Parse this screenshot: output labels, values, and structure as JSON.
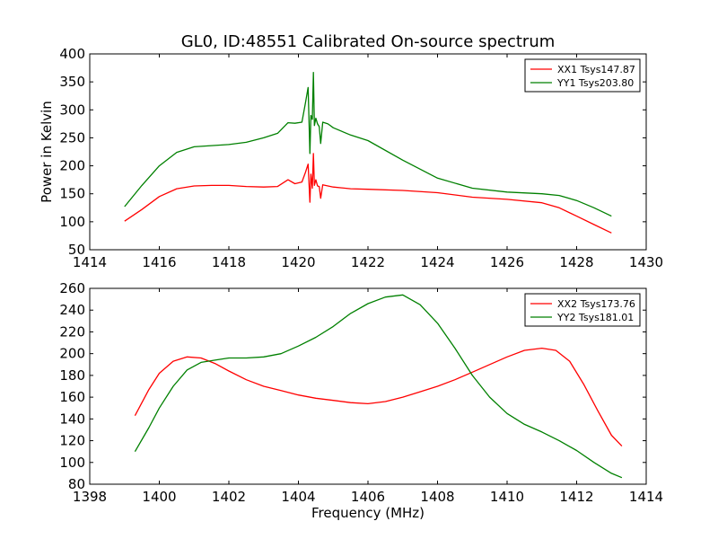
{
  "figure": {
    "title": "GL0, ID:48551 Calibrated On-source spectrum",
    "xlabel": "Frequency (MHz)"
  },
  "chart_data": [
    {
      "type": "line",
      "title": "GL0, ID:48551 Calibrated On-source spectrum",
      "xlabel": "",
      "ylabel": "Power in Kelvin",
      "xlim": [
        1414,
        1430
      ],
      "ylim": [
        50,
        400
      ],
      "xticks": [
        1414,
        1416,
        1418,
        1420,
        1422,
        1424,
        1426,
        1428,
        1430
      ],
      "yticks": [
        50,
        100,
        150,
        200,
        250,
        300,
        350,
        400
      ],
      "grid": false,
      "legend": "top-right",
      "series": [
        {
          "name": "XX1 Tsys147.87",
          "color": "#ff0000",
          "x": [
            1415.0,
            1415.5,
            1416.0,
            1416.5,
            1417.0,
            1417.5,
            1418.0,
            1418.5,
            1419.0,
            1419.4,
            1419.7,
            1419.9,
            1420.1,
            1420.2,
            1420.28,
            1420.33,
            1420.36,
            1420.4,
            1420.43,
            1420.46,
            1420.5,
            1420.55,
            1420.6,
            1420.64,
            1420.7,
            1420.85,
            1421.0,
            1421.5,
            1422.0,
            1423.0,
            1424.0,
            1425.0,
            1426.0,
            1427.0,
            1427.5,
            1428.0,
            1428.5,
            1429.0
          ],
          "y": [
            101,
            122,
            145,
            159,
            164,
            165,
            165,
            163,
            162,
            163,
            175,
            168,
            171,
            188,
            203,
            135,
            185,
            160,
            222,
            165,
            175,
            164,
            163,
            142,
            166,
            164,
            162,
            159,
            158,
            156,
            152,
            144,
            140,
            134,
            125,
            110,
            95,
            80
          ]
        },
        {
          "name": "YY1 Tsys203.80",
          "color": "#008000",
          "x": [
            1415.0,
            1415.5,
            1416.0,
            1416.5,
            1417.0,
            1417.5,
            1418.0,
            1418.5,
            1419.0,
            1419.4,
            1419.7,
            1419.9,
            1420.1,
            1420.2,
            1420.28,
            1420.33,
            1420.36,
            1420.4,
            1420.43,
            1420.46,
            1420.5,
            1420.55,
            1420.6,
            1420.64,
            1420.7,
            1420.85,
            1421.0,
            1421.5,
            1422.0,
            1423.0,
            1424.0,
            1425.0,
            1426.0,
            1427.0,
            1427.5,
            1428.0,
            1428.5,
            1429.0
          ],
          "y": [
            127,
            165,
            200,
            224,
            234,
            236,
            238,
            242,
            250,
            258,
            277,
            276,
            278,
            312,
            340,
            222,
            290,
            283,
            367,
            272,
            285,
            275,
            270,
            240,
            278,
            275,
            268,
            255,
            245,
            210,
            178,
            160,
            153,
            150,
            147,
            138,
            125,
            110
          ]
        }
      ]
    },
    {
      "type": "line",
      "title": "",
      "xlabel": "Frequency (MHz)",
      "ylabel": "",
      "xlim": [
        1398,
        1414
      ],
      "ylim": [
        80,
        260
      ],
      "xticks": [
        1398,
        1400,
        1402,
        1404,
        1406,
        1408,
        1410,
        1412,
        1414
      ],
      "yticks": [
        80,
        100,
        120,
        140,
        160,
        180,
        200,
        220,
        240,
        260
      ],
      "grid": false,
      "legend": "top-right",
      "series": [
        {
          "name": "XX2 Tsys173.76",
          "color": "#ff0000",
          "x": [
            1399.3,
            1399.7,
            1400.0,
            1400.4,
            1400.8,
            1401.2,
            1401.6,
            1402.0,
            1402.5,
            1403.0,
            1403.5,
            1404.0,
            1404.5,
            1405.0,
            1405.5,
            1406.0,
            1406.5,
            1407.0,
            1407.5,
            1408.0,
            1408.5,
            1409.0,
            1409.5,
            1410.0,
            1410.5,
            1411.0,
            1411.4,
            1411.8,
            1412.2,
            1412.6,
            1413.0,
            1413.3
          ],
          "y": [
            143,
            167,
            182,
            193,
            197,
            196,
            191,
            184,
            176,
            170,
            166,
            162,
            159,
            157,
            155,
            154,
            156,
            160,
            165,
            170,
            176,
            183,
            190,
            197,
            203,
            205,
            203,
            193,
            172,
            148,
            125,
            115
          ]
        },
        {
          "name": "YY2 Tsys181.01",
          "color": "#008000",
          "x": [
            1399.3,
            1399.7,
            1400.0,
            1400.4,
            1400.8,
            1401.2,
            1401.6,
            1402.0,
            1402.5,
            1403.0,
            1403.5,
            1404.0,
            1404.5,
            1405.0,
            1405.5,
            1406.0,
            1406.5,
            1407.0,
            1407.5,
            1408.0,
            1408.5,
            1409.0,
            1409.5,
            1410.0,
            1410.5,
            1411.0,
            1411.5,
            1412.0,
            1412.5,
            1413.0,
            1413.3
          ],
          "y": [
            110,
            132,
            150,
            170,
            185,
            192,
            194,
            196,
            196,
            197,
            200,
            207,
            215,
            225,
            237,
            246,
            252,
            254,
            245,
            228,
            205,
            180,
            160,
            145,
            135,
            128,
            120,
            111,
            100,
            90,
            86
          ]
        }
      ]
    }
  ]
}
